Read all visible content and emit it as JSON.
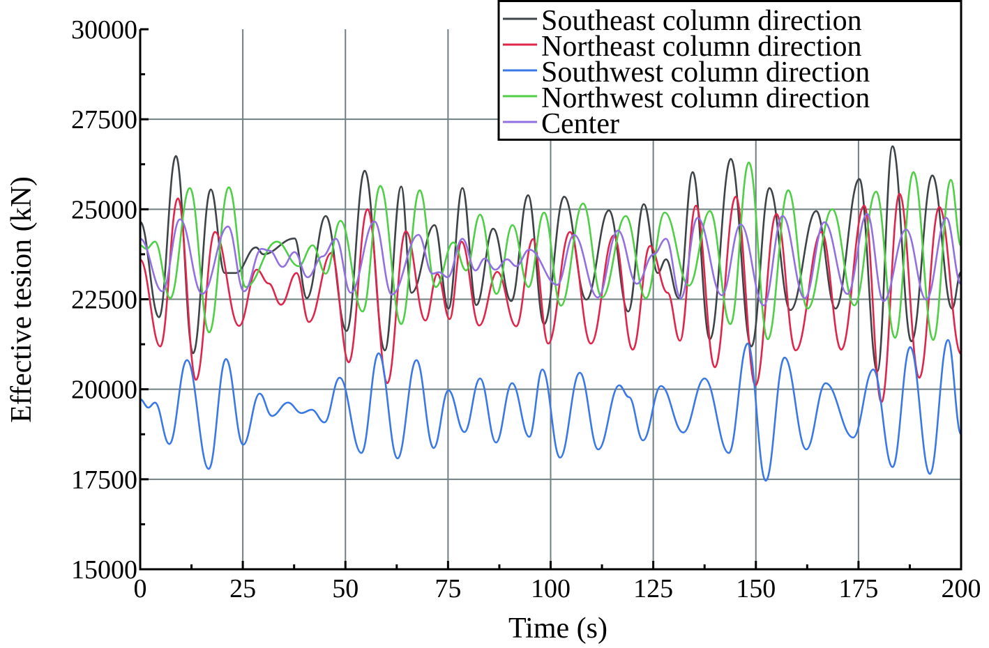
{
  "chart_data": {
    "type": "line",
    "title": "",
    "xlabel": "Time (s)",
    "ylabel": "Effective tesion (kN)",
    "xlim": [
      0,
      200
    ],
    "ylim": [
      15000,
      30000
    ],
    "xticks": [
      "0",
      "25",
      "50",
      "75",
      "100",
      "125",
      "150",
      "175",
      "200"
    ],
    "yticks": [
      "15000",
      "17500",
      "20000",
      "22500",
      "25000",
      "27500",
      "30000"
    ],
    "grid": true,
    "legend_position": "top-right",
    "series": [
      {
        "name": "Southeast column direction",
        "color": "#3d4347",
        "points": [
          [
            0,
            24650
          ],
          [
            4.6,
            22000
          ],
          [
            8.7,
            26480
          ],
          [
            12.9,
            21000
          ],
          [
            17.2,
            25550
          ],
          [
            20.6,
            23230
          ],
          [
            23.3,
            23230
          ],
          [
            28.2,
            23940
          ],
          [
            30,
            23750
          ],
          [
            37.6,
            24190
          ],
          [
            40.6,
            22530
          ],
          [
            45.2,
            24810
          ],
          [
            50.3,
            21620
          ],
          [
            54.7,
            26070
          ],
          [
            59.6,
            21080
          ],
          [
            63.6,
            25630
          ],
          [
            66.1,
            22680
          ],
          [
            71.7,
            24560
          ],
          [
            75.1,
            22240
          ],
          [
            78.5,
            25590
          ],
          [
            81.9,
            22340
          ],
          [
            86,
            24460
          ],
          [
            90.4,
            22450
          ],
          [
            94.5,
            25390
          ],
          [
            98.4,
            21810
          ],
          [
            103.3,
            25350
          ],
          [
            108.7,
            22490
          ],
          [
            114.2,
            24970
          ],
          [
            118.9,
            22160
          ],
          [
            122.7,
            25140
          ],
          [
            126.1,
            23230
          ],
          [
            128.1,
            23610
          ],
          [
            131.2,
            22530
          ],
          [
            134.6,
            26030
          ],
          [
            138.8,
            21390
          ],
          [
            143.9,
            26400
          ],
          [
            148.9,
            21190
          ],
          [
            153.3,
            25590
          ],
          [
            158.4,
            22200
          ],
          [
            164.7,
            24950
          ],
          [
            169.4,
            22240
          ],
          [
            175.2,
            25840
          ],
          [
            179.6,
            20500
          ],
          [
            183.3,
            26750
          ],
          [
            187.9,
            21330
          ],
          [
            193,
            25940
          ],
          [
            197.8,
            22240
          ],
          [
            200,
            23260
          ]
        ]
      },
      {
        "name": "Northeast column direction",
        "color": "#e0254a",
        "points": [
          [
            0,
            23600
          ],
          [
            4.9,
            21190
          ],
          [
            9.2,
            25300
          ],
          [
            13.6,
            20260
          ],
          [
            18.2,
            24370
          ],
          [
            24.1,
            21760
          ],
          [
            28.4,
            23320
          ],
          [
            31.3,
            22940
          ],
          [
            34.3,
            22350
          ],
          [
            38.1,
            23230
          ],
          [
            41.1,
            21870
          ],
          [
            46.6,
            23790
          ],
          [
            50.8,
            20750
          ],
          [
            55.4,
            25000
          ],
          [
            60.2,
            20170
          ],
          [
            64.7,
            24390
          ],
          [
            69.5,
            21910
          ],
          [
            72.4,
            23200
          ],
          [
            75.4,
            21950
          ],
          [
            78.3,
            24100
          ],
          [
            82.6,
            21770
          ],
          [
            87,
            23260
          ],
          [
            91.6,
            21750
          ],
          [
            95.7,
            24170
          ],
          [
            99.4,
            21270
          ],
          [
            104.7,
            24370
          ],
          [
            109.8,
            21270
          ],
          [
            115.4,
            24270
          ],
          [
            120,
            21100
          ],
          [
            124.2,
            23980
          ],
          [
            128.5,
            22680
          ],
          [
            131.5,
            21350
          ],
          [
            135.4,
            25100
          ],
          [
            140,
            20610
          ],
          [
            145.1,
            25350
          ],
          [
            149.9,
            20110
          ],
          [
            155,
            24870
          ],
          [
            159.7,
            21080
          ],
          [
            166,
            24370
          ],
          [
            170.8,
            21100
          ],
          [
            176.4,
            25100
          ],
          [
            180.6,
            19640
          ],
          [
            185,
            25430
          ],
          [
            189.8,
            20320
          ],
          [
            194.7,
            25060
          ],
          [
            200,
            20980
          ]
        ]
      },
      {
        "name": "Southwest column direction",
        "color": "#3a78e8",
        "points": [
          [
            0,
            19720
          ],
          [
            2,
            19490
          ],
          [
            3.6,
            19630
          ],
          [
            7.1,
            18480
          ],
          [
            11.4,
            20810
          ],
          [
            16.7,
            17790
          ],
          [
            20.9,
            20840
          ],
          [
            25.1,
            18460
          ],
          [
            29.1,
            19880
          ],
          [
            32.1,
            19260
          ],
          [
            36,
            19630
          ],
          [
            39.3,
            19340
          ],
          [
            41.8,
            19430
          ],
          [
            44.9,
            19080
          ],
          [
            48.6,
            20320
          ],
          [
            53.9,
            18230
          ],
          [
            58.1,
            21000
          ],
          [
            62.7,
            18080
          ],
          [
            67.3,
            20810
          ],
          [
            71.5,
            18370
          ],
          [
            75.1,
            19970
          ],
          [
            79,
            18810
          ],
          [
            82.8,
            20300
          ],
          [
            86.7,
            18520
          ],
          [
            90.6,
            20170
          ],
          [
            94.8,
            18680
          ],
          [
            98,
            20550
          ],
          [
            102.3,
            18100
          ],
          [
            107.1,
            20460
          ],
          [
            111.6,
            18330
          ],
          [
            116.7,
            20110
          ],
          [
            119.1,
            19780
          ],
          [
            122.5,
            18580
          ],
          [
            126.9,
            20090
          ],
          [
            132.3,
            18800
          ],
          [
            137.5,
            20300
          ],
          [
            143.4,
            18230
          ],
          [
            148,
            21270
          ],
          [
            152.4,
            17460
          ],
          [
            157,
            20880
          ],
          [
            162.3,
            18330
          ],
          [
            167,
            20170
          ],
          [
            173.7,
            18660
          ],
          [
            178.6,
            20550
          ],
          [
            183.3,
            17840
          ],
          [
            187.6,
            21170
          ],
          [
            192.4,
            17650
          ],
          [
            196.8,
            21370
          ],
          [
            200,
            18750
          ]
        ]
      },
      {
        "name": "Northwest column direction",
        "color": "#4ecf45",
        "points": [
          [
            0,
            24000
          ],
          [
            1.5,
            23900
          ],
          [
            3.6,
            24100
          ],
          [
            7.3,
            22530
          ],
          [
            12.1,
            25590
          ],
          [
            16.8,
            21580
          ],
          [
            21.6,
            25610
          ],
          [
            25.7,
            22840
          ],
          [
            33.3,
            24100
          ],
          [
            38.6,
            23420
          ],
          [
            42,
            24000
          ],
          [
            45.2,
            23210
          ],
          [
            48.8,
            24680
          ],
          [
            54.2,
            22160
          ],
          [
            58.5,
            25650
          ],
          [
            63.6,
            21810
          ],
          [
            68.1,
            25530
          ],
          [
            72,
            22840
          ],
          [
            76.3,
            24080
          ],
          [
            79.4,
            23300
          ],
          [
            82.8,
            24850
          ],
          [
            86.8,
            22650
          ],
          [
            90.7,
            24560
          ],
          [
            94.6,
            22840
          ],
          [
            98.4,
            24910
          ],
          [
            102.5,
            22320
          ],
          [
            107.9,
            25160
          ],
          [
            112.5,
            22550
          ],
          [
            118.3,
            24810
          ],
          [
            123.2,
            22530
          ],
          [
            127.8,
            24910
          ],
          [
            133.7,
            22880
          ],
          [
            138.8,
            24950
          ],
          [
            143.8,
            21810
          ],
          [
            148.3,
            26300
          ],
          [
            152.9,
            21390
          ],
          [
            157.9,
            25530
          ],
          [
            162.6,
            22240
          ],
          [
            168.6,
            25000
          ],
          [
            174,
            22330
          ],
          [
            179.3,
            25490
          ],
          [
            183.9,
            21430
          ],
          [
            188.4,
            26030
          ],
          [
            193.2,
            21370
          ],
          [
            197.5,
            25820
          ],
          [
            200,
            23980
          ]
        ]
      },
      {
        "name": "Center",
        "color": "#9370e0",
        "points": [
          [
            0,
            24180
          ],
          [
            5.4,
            22720
          ],
          [
            9.7,
            24720
          ],
          [
            15.1,
            22650
          ],
          [
            21.4,
            24520
          ],
          [
            25.3,
            22720
          ],
          [
            29.6,
            23900
          ],
          [
            31.5,
            23850
          ],
          [
            34.7,
            23400
          ],
          [
            37.6,
            23810
          ],
          [
            40.8,
            23110
          ],
          [
            44.4,
            23690
          ],
          [
            47.7,
            24180
          ],
          [
            51.3,
            22680
          ],
          [
            57.1,
            24660
          ],
          [
            61.3,
            22630
          ],
          [
            67.8,
            24290
          ],
          [
            71.2,
            23210
          ],
          [
            72.8,
            23250
          ],
          [
            74.9,
            23110
          ],
          [
            78.5,
            24180
          ],
          [
            81.7,
            23300
          ],
          [
            83.9,
            23630
          ],
          [
            86.5,
            23320
          ],
          [
            89.4,
            23610
          ],
          [
            91.6,
            23420
          ],
          [
            94.8,
            23880
          ],
          [
            101.6,
            22900
          ],
          [
            105.7,
            24290
          ],
          [
            111.5,
            22550
          ],
          [
            116.4,
            24410
          ],
          [
            121,
            22930
          ],
          [
            125.1,
            23750
          ],
          [
            128.1,
            24180
          ],
          [
            131.7,
            22530
          ],
          [
            135.8,
            24760
          ],
          [
            141.7,
            22610
          ],
          [
            146.3,
            24580
          ],
          [
            151.9,
            22330
          ],
          [
            156.5,
            24810
          ],
          [
            161.9,
            22530
          ],
          [
            166.7,
            24640
          ],
          [
            172.3,
            22650
          ],
          [
            177.1,
            24870
          ],
          [
            181.1,
            22450
          ],
          [
            186.6,
            24440
          ],
          [
            191.5,
            22490
          ],
          [
            196.4,
            24760
          ],
          [
            200,
            22920
          ]
        ]
      }
    ]
  }
}
